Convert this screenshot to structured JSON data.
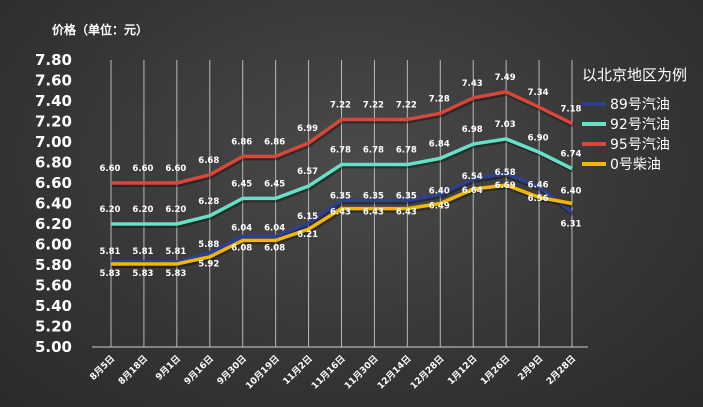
{
  "chart_data": {
    "type": "line",
    "title": "",
    "ylabel": "价格（单位：元）",
    "xlabel": "",
    "ylim": [
      5.0,
      7.8
    ],
    "yticks": [
      "5.00",
      "5.20",
      "5.40",
      "5.60",
      "5.80",
      "6.00",
      "6.20",
      "6.40",
      "6.60",
      "6.80",
      "7.00",
      "7.20",
      "7.40",
      "7.60",
      "7.80"
    ],
    "categories": [
      "8月5日",
      "8月18日",
      "9月1日",
      "9月16日",
      "9月30日",
      "10月19日",
      "11月2日",
      "11月16日",
      "11月30日",
      "12月14日",
      "12月28日",
      "1月12日",
      "1月26日",
      "2月9日",
      "2月28日"
    ],
    "legend_title": "以北京地区为例",
    "legend_position": "right",
    "grid": "vertical",
    "series": [
      {
        "name": "89号汽油",
        "color": "#2f3f8f",
        "values": [
          5.83,
          5.83,
          5.83,
          5.92,
          6.08,
          6.08,
          6.21,
          6.43,
          6.43,
          6.43,
          6.49,
          6.64,
          6.69,
          6.56,
          6.31
        ]
      },
      {
        "name": "92号汽油",
        "color": "#66e0c6",
        "values": [
          6.2,
          6.2,
          6.2,
          6.28,
          6.45,
          6.45,
          6.57,
          6.78,
          6.78,
          6.78,
          6.84,
          6.98,
          7.03,
          6.9,
          6.74
        ]
      },
      {
        "name": "95号汽油",
        "color": "#d9463a",
        "values": [
          6.6,
          6.6,
          6.6,
          6.68,
          6.86,
          6.86,
          6.99,
          7.22,
          7.22,
          7.22,
          7.28,
          7.43,
          7.49,
          7.34,
          7.18
        ]
      },
      {
        "name": "0号柴油",
        "color": "#f2b705",
        "values": [
          5.81,
          5.81,
          5.81,
          5.88,
          6.04,
          6.04,
          6.15,
          6.35,
          6.35,
          6.35,
          6.4,
          6.54,
          6.58,
          6.46,
          6.4
        ]
      }
    ]
  }
}
